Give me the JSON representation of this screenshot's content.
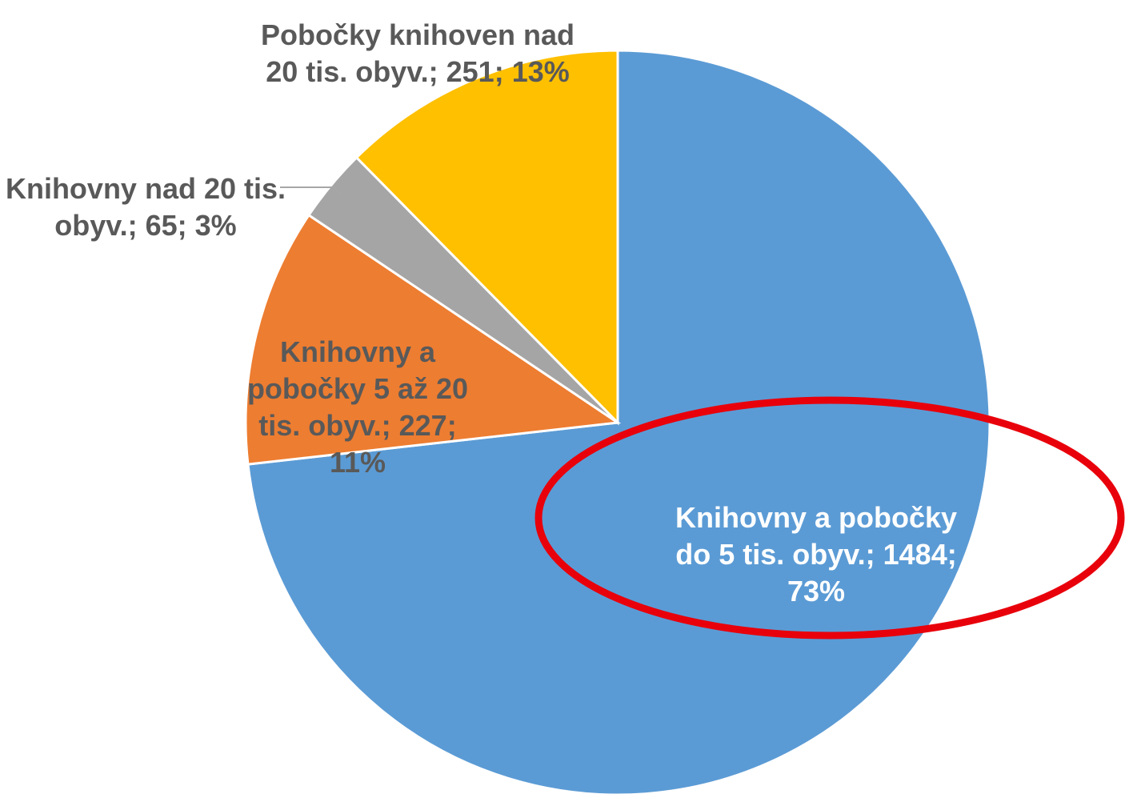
{
  "chart_data": {
    "type": "pie",
    "start_angle": "12 o'clock",
    "direction": "clockwise",
    "slices": [
      {
        "name": "Knihovny a pobočky do 5 tis. obyv.",
        "value": 1484,
        "percent": 73,
        "color": "#5b9bd5",
        "label_lines": [
          "Knihovny a pobočky",
          "do 5 tis. obyv.; 1484;",
          "73%"
        ],
        "label_color": "light"
      },
      {
        "name": "Knihovny a pobočky 5 až 20 tis. obyv.",
        "value": 227,
        "percent": 11,
        "color": "#ed7d31",
        "label_lines": [
          "Knihovny a",
          "pobočky 5 až 20",
          "tis. obyv.; 227;",
          "11%"
        ],
        "label_color": "dark"
      },
      {
        "name": "Knihovny nad 20 tis. obyv.",
        "value": 65,
        "percent": 3,
        "color": "#a5a5a5",
        "label_lines": [
          "Knihovny nad 20 tis.",
          "obyv.; 65; 3%"
        ],
        "label_color": "dark"
      },
      {
        "name": "Pobočky knihoven nad 20 tis. obyv.",
        "value": 251,
        "percent": 13,
        "color": "#ffc000",
        "label_lines": [
          "Pobočky knihoven nad",
          "20 tis. obyv.; 251; 13%"
        ],
        "label_color": "dark"
      }
    ],
    "highlight": {
      "target": "Knihovny a pobočky do 5 tis. obyv.",
      "shape": "ellipse",
      "color": "#e8000b"
    },
    "legend": "none",
    "title": ""
  }
}
